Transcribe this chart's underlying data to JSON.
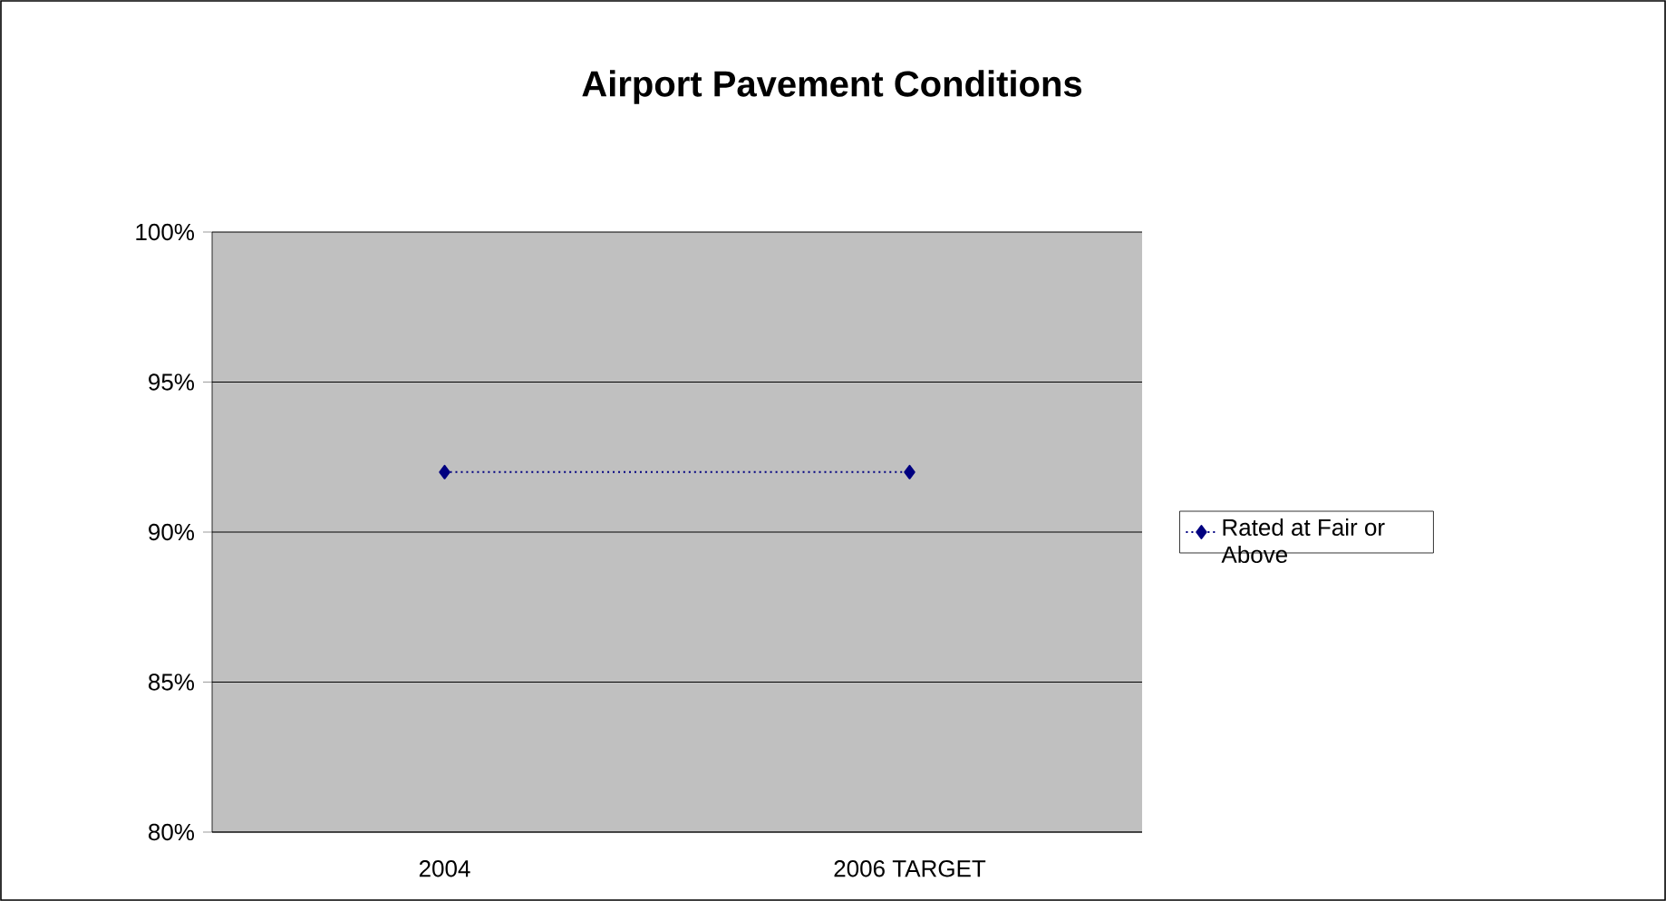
{
  "chart_data": {
    "type": "line",
    "title": "Airport Pavement Conditions",
    "categories": [
      "2004",
      "2006 TARGET"
    ],
    "series": [
      {
        "name": "Rated at Fair or Above",
        "color": "#000080",
        "values": [
          92,
          92
        ]
      }
    ],
    "ylim": [
      80,
      100
    ],
    "yticks": [
      {
        "value": 80,
        "label": "80%"
      },
      {
        "value": 85,
        "label": "85%"
      },
      {
        "value": 90,
        "label": "90%"
      },
      {
        "value": 95,
        "label": "95%"
      },
      {
        "value": 100,
        "label": "100%"
      }
    ],
    "grid": "y",
    "legend": "right",
    "marker": "diamond",
    "line_style": "dotted"
  }
}
